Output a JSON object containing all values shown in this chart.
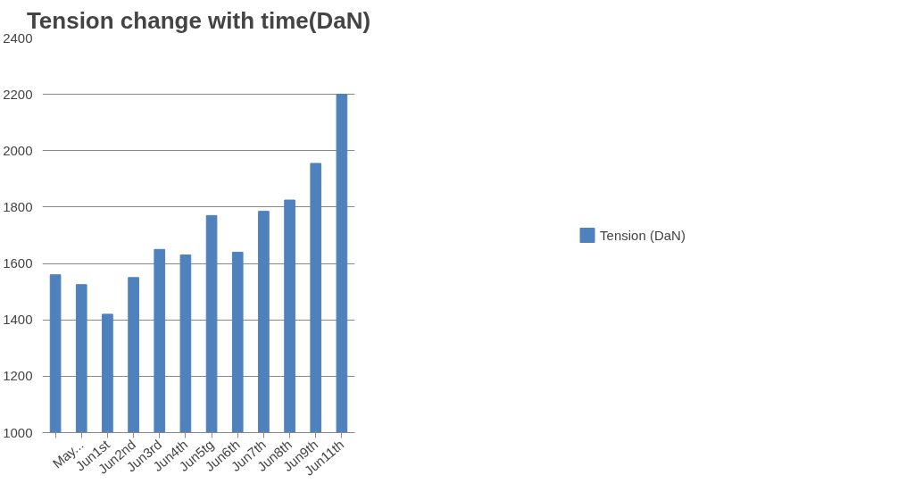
{
  "chart_data": {
    "type": "bar",
    "title": "Tension change with time(DaN)",
    "categories": [
      null,
      "May...",
      "Jun1st",
      "Jun2nd",
      "Jun3rd",
      "Jun4th",
      "Jun5tg",
      "Jun6th",
      "Jun7th",
      "Jun8th",
      "Jun9th",
      "Jun11th"
    ],
    "series": [
      {
        "name": "Tension (DaN)",
        "color": "#4f81bd",
        "values": [
          1560,
          1525,
          1420,
          1550,
          1650,
          1630,
          1770,
          1640,
          1785,
          1825,
          1955,
          2200
        ]
      }
    ],
    "ylim": [
      1000,
      2400
    ],
    "yticks": [
      1000,
      1200,
      1400,
      1600,
      1800,
      2000,
      2200,
      2400
    ],
    "grid": "y",
    "legend": "right"
  }
}
